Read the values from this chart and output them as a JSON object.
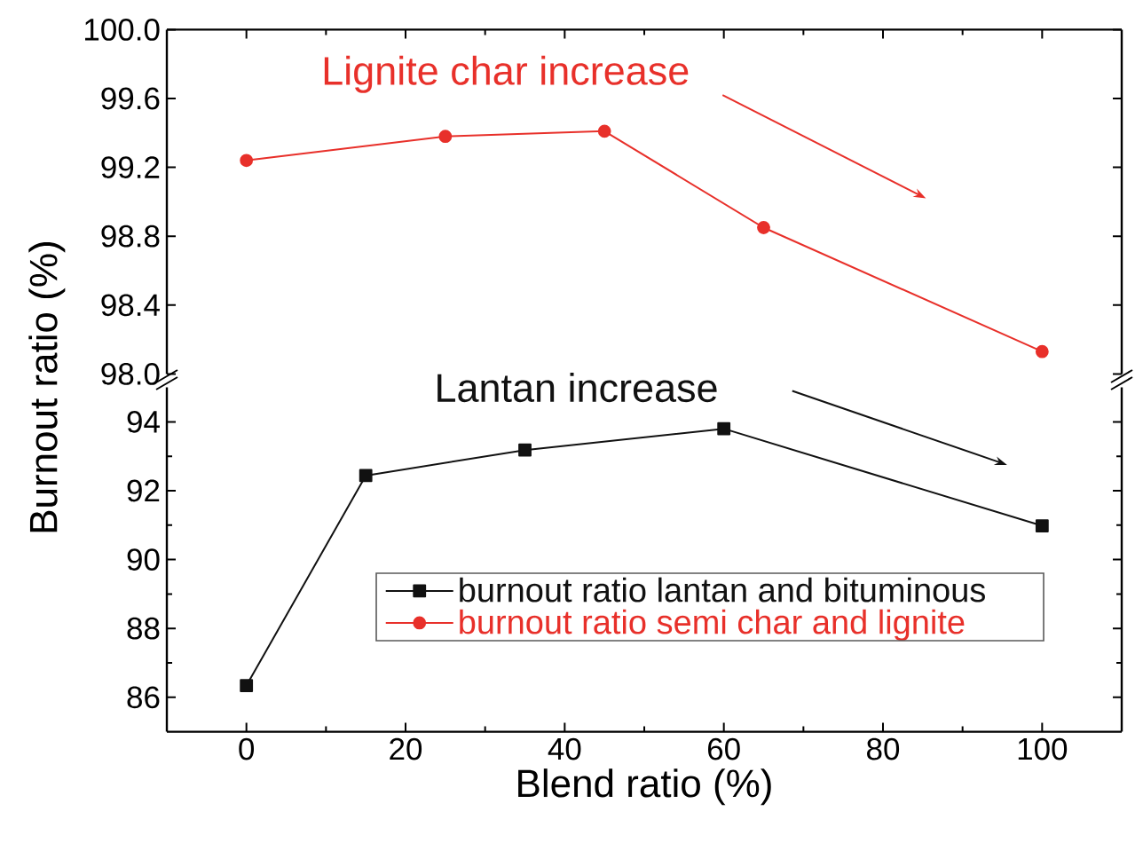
{
  "chart_data": [
    {
      "type": "line",
      "xlim": [
        -10,
        110
      ],
      "xticks": [
        0,
        20,
        40,
        60,
        80,
        100
      ],
      "ylim": [
        98.0,
        100.0
      ],
      "yticks": [
        {
          "value": 98.0,
          "label": "98.0"
        },
        99.6,
        98.4,
        98.8,
        99.2,
        {
          "value": 100.0,
          "label": "100.0"
        }
      ],
      "tick_labels": "y",
      "x": [
        0,
        25,
        45,
        65,
        100
      ],
      "legend": "bottom",
      "series": [
        {
          "name": "burnout ratio semi char and lignite",
          "color": "#e8302a",
          "marker": "circle",
          "values": [
            99.24,
            99.38,
            99.41,
            98.85,
            98.13
          ]
        }
      ],
      "annotations": [
        "Lignite char increase"
      ]
    },
    {
      "type": "line",
      "xlim": [
        -10,
        110
      ],
      "xticks": [
        0,
        20,
        40,
        60,
        80,
        100
      ],
      "ylim": [
        85,
        95
      ],
      "yticks": [
        86,
        88,
        90,
        92,
        94
      ],
      "xlabel": "Blend ratio (%)",
      "ylabel": "Burnout ratio (%)",
      "x": [
        0,
        15,
        35,
        60,
        100
      ],
      "legend": "bottom",
      "series": [
        {
          "name": "burnout ratio lantan and bituminous",
          "color": "#111111",
          "marker": "square",
          "values": [
            86.34,
            92.44,
            93.18,
            93.8,
            90.98
          ]
        }
      ],
      "annotations": [
        "Lantan increase"
      ]
    }
  ]
}
